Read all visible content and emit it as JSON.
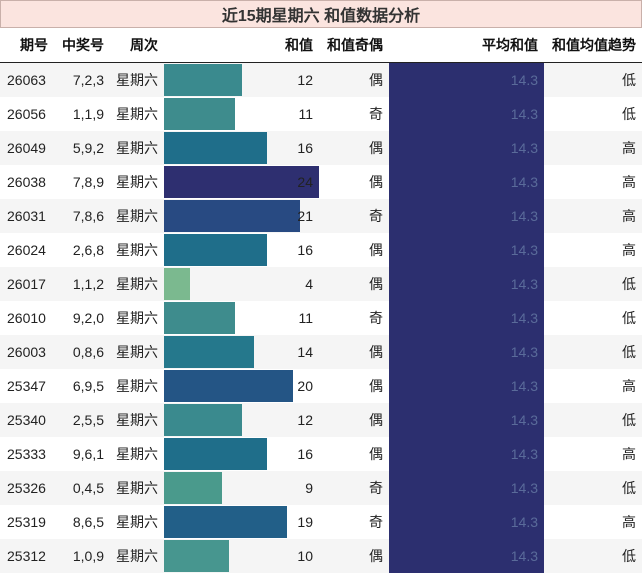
{
  "title": "近15期星期六 和值数据分析",
  "columns": [
    "期号",
    "中奖号",
    "周次",
    "和值",
    "和值奇偶",
    "平均和值",
    "和值均值趋势"
  ],
  "sum_max": 24,
  "colors": {
    "avg_fill": "#2c2f6f",
    "title_bg": "#fbe4df",
    "sum_scale": {
      "4": "#7bb98f",
      "9": "#4a9a8c",
      "10": "#47968f",
      "11": "#3e8c8d",
      "12": "#3a8a8e",
      "14": "#25788c",
      "16": "#1f6e8a",
      "19": "#225f88",
      "20": "#245585",
      "21": "#284a82",
      "24": "#2e2f70"
    }
  },
  "rows": [
    {
      "issue": "26063",
      "numbers": "7,2,3",
      "weekday": "星期六",
      "sum": 12,
      "sum_label": "12",
      "parity": "偶",
      "avg": "14.3",
      "trend": "低"
    },
    {
      "issue": "26056",
      "numbers": "1,1,9",
      "weekday": "星期六",
      "sum": 11,
      "sum_label": "11",
      "parity": "奇",
      "avg": "14.3",
      "trend": "低"
    },
    {
      "issue": "26049",
      "numbers": "5,9,2",
      "weekday": "星期六",
      "sum": 16,
      "sum_label": "16",
      "parity": "偶",
      "avg": "14.3",
      "trend": "高"
    },
    {
      "issue": "26038",
      "numbers": "7,8,9",
      "weekday": "星期六",
      "sum": 24,
      "sum_label": "24",
      "parity": "偶",
      "avg": "14.3",
      "trend": "高"
    },
    {
      "issue": "26031",
      "numbers": "7,8,6",
      "weekday": "星期六",
      "sum": 21,
      "sum_label": "21",
      "parity": "奇",
      "avg": "14.3",
      "trend": "高"
    },
    {
      "issue": "26024",
      "numbers": "2,6,8",
      "weekday": "星期六",
      "sum": 16,
      "sum_label": "16",
      "parity": "偶",
      "avg": "14.3",
      "trend": "高"
    },
    {
      "issue": "26017",
      "numbers": "1,1,2",
      "weekday": "星期六",
      "sum": 4,
      "sum_label": "4",
      "parity": "偶",
      "avg": "14.3",
      "trend": "低"
    },
    {
      "issue": "26010",
      "numbers": "9,2,0",
      "weekday": "星期六",
      "sum": 11,
      "sum_label": "11",
      "parity": "奇",
      "avg": "14.3",
      "trend": "低"
    },
    {
      "issue": "26003",
      "numbers": "0,8,6",
      "weekday": "星期六",
      "sum": 14,
      "sum_label": "14",
      "parity": "偶",
      "avg": "14.3",
      "trend": "低"
    },
    {
      "issue": "25347",
      "numbers": "6,9,5",
      "weekday": "星期六",
      "sum": 20,
      "sum_label": "20",
      "parity": "偶",
      "avg": "14.3",
      "trend": "高"
    },
    {
      "issue": "25340",
      "numbers": "2,5,5",
      "weekday": "星期六",
      "sum": 12,
      "sum_label": "12",
      "parity": "偶",
      "avg": "14.3",
      "trend": "低"
    },
    {
      "issue": "25333",
      "numbers": "9,6,1",
      "weekday": "星期六",
      "sum": 16,
      "sum_label": "16",
      "parity": "偶",
      "avg": "14.3",
      "trend": "高"
    },
    {
      "issue": "25326",
      "numbers": "0,4,5",
      "weekday": "星期六",
      "sum": 9,
      "sum_label": "9",
      "parity": "奇",
      "avg": "14.3",
      "trend": "低"
    },
    {
      "issue": "25319",
      "numbers": "8,6,5",
      "weekday": "星期六",
      "sum": 19,
      "sum_label": "19",
      "parity": "奇",
      "avg": "14.3",
      "trend": "高"
    },
    {
      "issue": "25312",
      "numbers": "1,0,9",
      "weekday": "星期六",
      "sum": 10,
      "sum_label": "10",
      "parity": "偶",
      "avg": "14.3",
      "trend": "低"
    }
  ]
}
